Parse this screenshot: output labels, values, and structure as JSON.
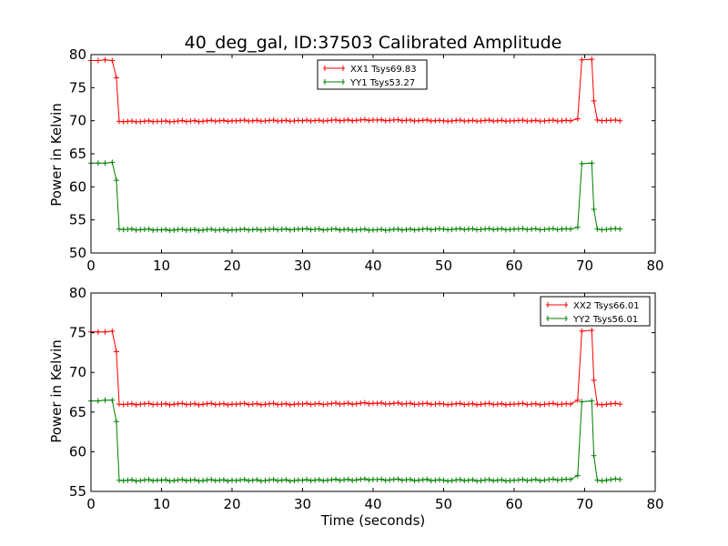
{
  "title": "40_deg_gal, ID:37503 Calibrated Amplitude",
  "chart_data": [
    {
      "type": "line",
      "ylabel": "Power in Kelvin",
      "xlabel": "",
      "xlim": [
        0,
        80
      ],
      "ylim": [
        50,
        80
      ],
      "xticks": [
        "0",
        "10",
        "20",
        "30",
        "40",
        "50",
        "60",
        "70",
        "80"
      ],
      "yticks": [
        "50",
        "55",
        "60",
        "65",
        "70",
        "75",
        "80"
      ],
      "legend_position": "top-center",
      "series": [
        {
          "name": "XX1 Tsys69.83",
          "color": "#ff0000",
          "points": [
            [
              0,
              79.1
            ],
            [
              1,
              79.1
            ],
            [
              2,
              79.2
            ],
            [
              3,
              79.1
            ],
            [
              3.6,
              76.5
            ],
            [
              4,
              69.9
            ],
            [
              10,
              69.9
            ],
            [
              20,
              70.0
            ],
            [
              30,
              70.0
            ],
            [
              40,
              70.1
            ],
            [
              50,
              70.0
            ],
            [
              60,
              70.0
            ],
            [
              68,
              70.0
            ],
            [
              69,
              70.3
            ],
            [
              69.6,
              79.2
            ],
            [
              71,
              79.3
            ],
            [
              71.3,
              73.0
            ],
            [
              71.8,
              70.1
            ],
            [
              75,
              70.0
            ]
          ]
        },
        {
          "name": "YY1 Tsys53.27",
          "color": "#008000",
          "points": [
            [
              0,
              63.6
            ],
            [
              1,
              63.6
            ],
            [
              2,
              63.6
            ],
            [
              3,
              63.7
            ],
            [
              3.6,
              61.0
            ],
            [
              4,
              53.6
            ],
            [
              10,
              53.5
            ],
            [
              20,
              53.5
            ],
            [
              30,
              53.6
            ],
            [
              40,
              53.5
            ],
            [
              50,
              53.6
            ],
            [
              60,
              53.6
            ],
            [
              68,
              53.6
            ],
            [
              69,
              53.9
            ],
            [
              69.6,
              63.5
            ],
            [
              71,
              63.6
            ],
            [
              71.3,
              56.6
            ],
            [
              71.8,
              53.6
            ],
            [
              75,
              53.6
            ]
          ]
        }
      ]
    },
    {
      "type": "line",
      "ylabel": "Power in Kelvin",
      "xlabel": "Time (seconds)",
      "xlim": [
        0,
        80
      ],
      "ylim": [
        55,
        80
      ],
      "xticks": [
        "0",
        "10",
        "20",
        "30",
        "40",
        "50",
        "60",
        "70",
        "80"
      ],
      "yticks": [
        "55",
        "60",
        "65",
        "70",
        "75",
        "80"
      ],
      "legend_position": "top-right",
      "series": [
        {
          "name": "XX2 Tsys66.01",
          "color": "#ff0000",
          "points": [
            [
              0,
              75.1
            ],
            [
              1,
              75.1
            ],
            [
              2,
              75.1
            ],
            [
              3,
              75.2
            ],
            [
              3.6,
              72.6
            ],
            [
              4,
              66.0
            ],
            [
              10,
              66.0
            ],
            [
              20,
              66.0
            ],
            [
              30,
              66.0
            ],
            [
              40,
              66.1
            ],
            [
              50,
              66.0
            ],
            [
              60,
              66.0
            ],
            [
              68,
              66.0
            ],
            [
              69,
              66.5
            ],
            [
              69.6,
              75.2
            ],
            [
              71,
              75.3
            ],
            [
              71.3,
              69.0
            ],
            [
              71.8,
              66.0
            ],
            [
              75,
              66.0
            ]
          ]
        },
        {
          "name": "YY2 Tsys56.01",
          "color": "#008000",
          "points": [
            [
              0,
              66.4
            ],
            [
              1,
              66.4
            ],
            [
              2,
              66.5
            ],
            [
              3,
              66.5
            ],
            [
              3.6,
              63.8
            ],
            [
              4,
              56.4
            ],
            [
              10,
              56.4
            ],
            [
              20,
              56.4
            ],
            [
              30,
              56.4
            ],
            [
              40,
              56.5
            ],
            [
              50,
              56.4
            ],
            [
              60,
              56.4
            ],
            [
              68,
              56.5
            ],
            [
              69,
              57.0
            ],
            [
              69.6,
              66.3
            ],
            [
              71,
              66.4
            ],
            [
              71.3,
              59.5
            ],
            [
              71.8,
              56.4
            ],
            [
              75,
              56.5
            ]
          ]
        }
      ]
    }
  ]
}
